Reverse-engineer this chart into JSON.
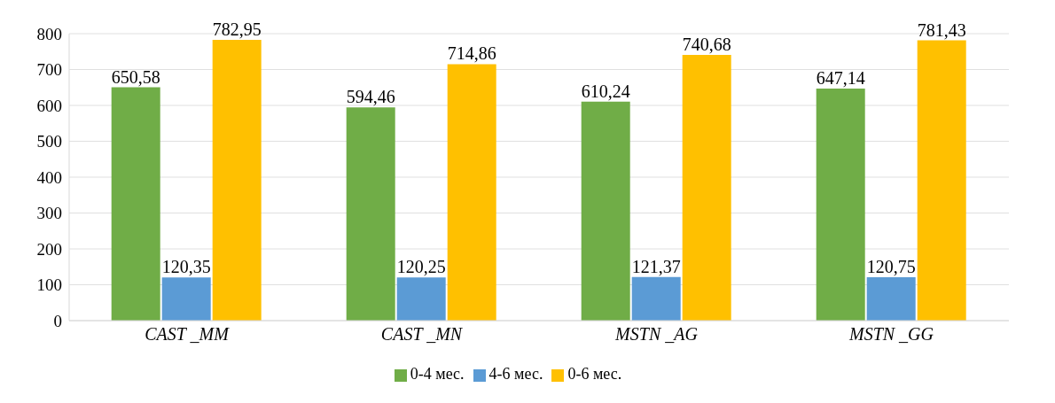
{
  "chart_data": {
    "type": "bar",
    "categories": [
      "CAST _MM",
      "CAST _MN",
      "MSTN _AG",
      "MSTN _GG"
    ],
    "series": [
      {
        "name": "0-4 мес.",
        "color": "#70ad47",
        "values": [
          650.58,
          594.46,
          610.24,
          647.14
        ],
        "value_labels": [
          "650,58",
          "594,46",
          "610,24",
          "647,14"
        ]
      },
      {
        "name": "4-6 мес.",
        "color": "#5b9bd5",
        "values": [
          120.35,
          120.25,
          121.37,
          120.75
        ],
        "value_labels": [
          "120,35",
          "120,25",
          "121,37",
          "120,75"
        ]
      },
      {
        "name": "0-6 мес.",
        "color": "#ffc000",
        "values": [
          782.95,
          714.86,
          740.68,
          781.43
        ],
        "value_labels": [
          "782,95",
          "714,86",
          "740,68",
          "781,43"
        ]
      }
    ],
    "ylim": [
      0,
      800
    ],
    "yticks": [
      0,
      100,
      200,
      300,
      400,
      500,
      600,
      700,
      800
    ],
    "grid": "y",
    "legend": "bottom"
  }
}
